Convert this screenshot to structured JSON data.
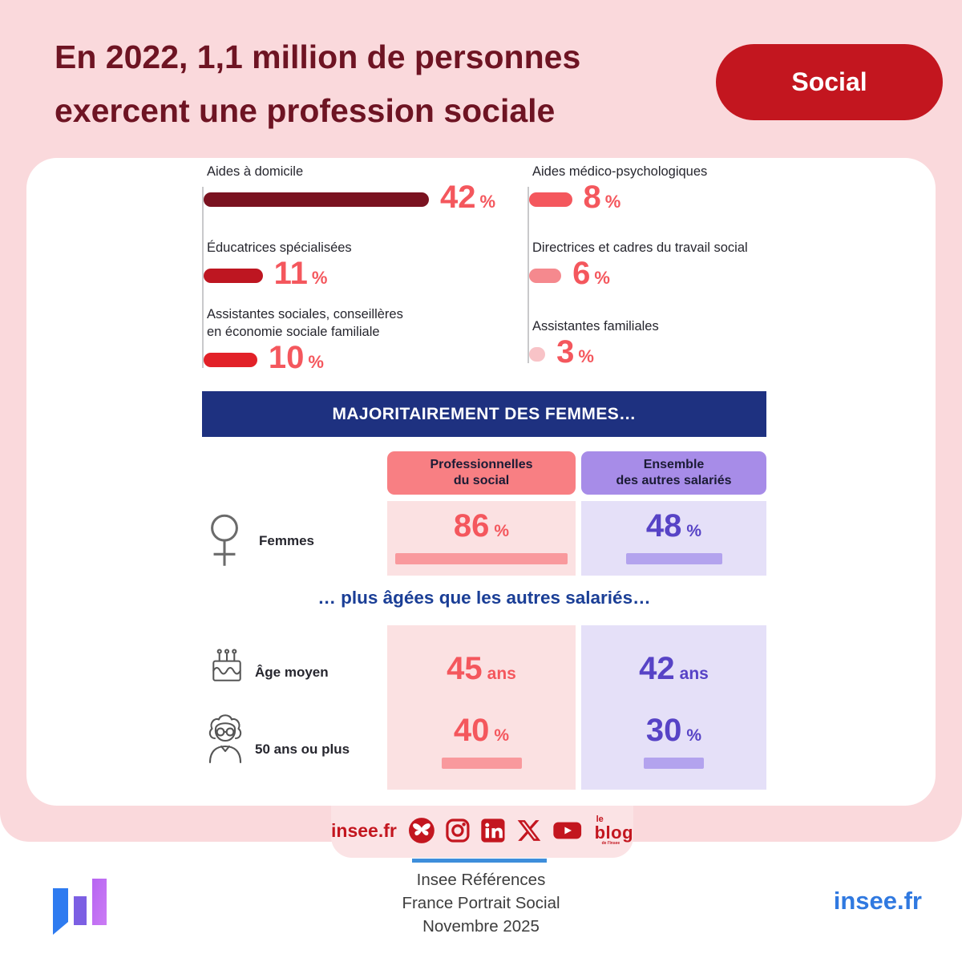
{
  "header": {
    "title_line1": "En 2022, 1,1 million de personnes",
    "title_line2": "exercent une profession sociale",
    "badge": "Social"
  },
  "chart_data": [
    {
      "type": "bar",
      "orientation": "horizontal",
      "unit": "%",
      "xlim": [
        0,
        50
      ],
      "value_color": "#F4575D",
      "items": [
        {
          "label": "Aides à domicile",
          "value": 42,
          "unit": "%",
          "color": "#7A1220"
        },
        {
          "label": "Éducatrices spécialisées",
          "value": 11,
          "unit": "%",
          "color": "#BE1621"
        },
        {
          "label": "Assistantes sociales, conseillères\nen économie sociale familiale",
          "value": 10,
          "unit": "%",
          "color": "#E22128"
        },
        {
          "label": "Aides médico-psychologiques",
          "value": 8,
          "unit": "%",
          "color": "#F4575D"
        },
        {
          "label": "Directrices et cadres du travail social",
          "value": 6,
          "unit": "%",
          "color": "#F5898E"
        },
        {
          "label": "Assistantes familiales",
          "value": 3,
          "unit": "%",
          "color": "#F8C3C7"
        }
      ]
    },
    {
      "type": "table",
      "title": "MAJORITAIREMENT DES FEMMES…",
      "subtitle": "… plus âgées que les autres salariés…",
      "columns": {
        "social": "Professionnelles\ndu social",
        "others": "Ensemble\ndes autres salariés"
      },
      "colors": {
        "social_value": "#F4575D",
        "others_value": "#5743C6",
        "social_bar": "#F9999D",
        "others_bar": "#B3A3EE"
      },
      "rows": {
        "femmes": {
          "label": "Femmes",
          "social": 86,
          "others": 48,
          "unit": "%"
        },
        "age_moyen": {
          "label": "Âge moyen",
          "social": 45,
          "others": 42,
          "unit": "ans"
        },
        "cinquante_plus": {
          "label": "50 ans ou plus",
          "social": 40,
          "others": 30,
          "unit": "%"
        }
      }
    }
  ],
  "footer": {
    "social_label": "insee.fr",
    "icons": [
      "bluesky",
      "instagram",
      "linkedin",
      "x",
      "youtube"
    ],
    "blog_top": "le",
    "blog_main": "blog",
    "blog_sub": "de l'Insee",
    "ref_line1": "Insee Références",
    "ref_line2": "France Portrait Social",
    "ref_line3": "Novembre 2025",
    "site": "insee.fr"
  },
  "palette": {
    "background_pink": "#FAD9DC",
    "tab_pink": "#FBE3E5",
    "title_maroon": "#6E1423",
    "badge_red": "#C3161F",
    "banner_navy": "#1E3180",
    "subtitle_navy": "#1A3E96",
    "header_social_bg": "#F87F83",
    "header_others_bg": "#A78CE8",
    "cell_pink": "#FBE1E2",
    "cell_lavender": "#E5E0F8",
    "link_blue": "#3079E0"
  }
}
